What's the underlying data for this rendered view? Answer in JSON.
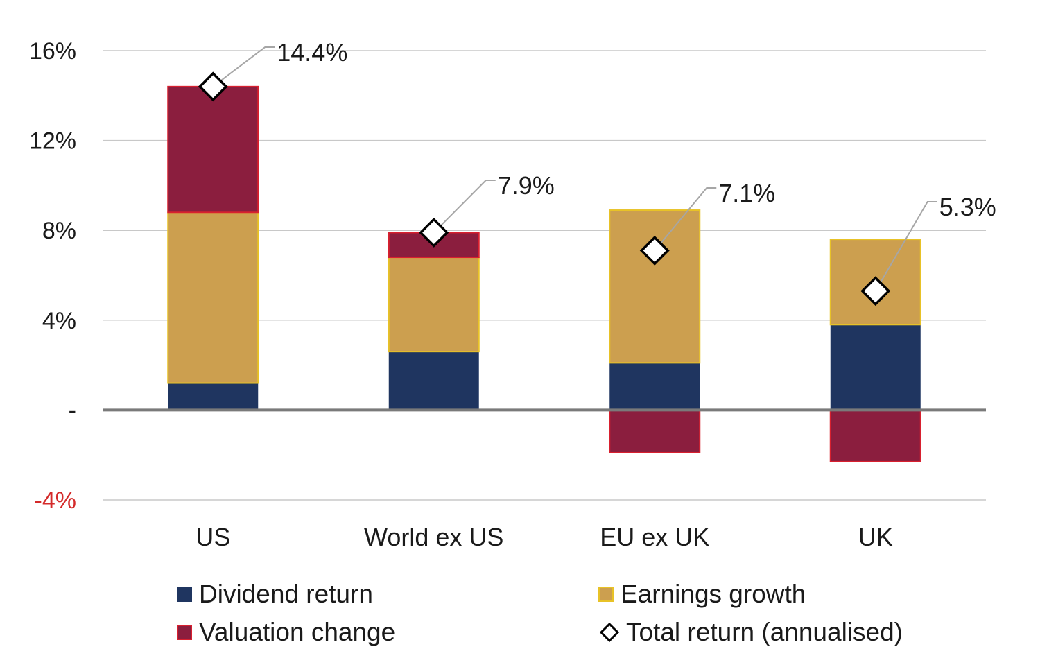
{
  "chart_data": {
    "type": "bar",
    "stacked": true,
    "categories": [
      "US",
      "World ex US",
      "EU ex UK",
      "UK"
    ],
    "series": [
      {
        "name": "Dividend return",
        "color": "#1f3560",
        "values": [
          1.2,
          2.6,
          2.1,
          3.8
        ]
      },
      {
        "name": "Earnings growth",
        "color": "#cc9f4f",
        "values": [
          7.6,
          4.2,
          6.8,
          3.8
        ]
      },
      {
        "name": "Valuation change",
        "color": "#8b1e3e",
        "values": [
          5.6,
          1.1,
          -1.9,
          -2.3
        ]
      }
    ],
    "total_return": {
      "name": "Total return (annualised)",
      "values": [
        14.4,
        7.9,
        7.1,
        5.3
      ],
      "labels": [
        "14.4%",
        "7.9%",
        "7.1%",
        "5.3%"
      ]
    },
    "ylim": [
      -4,
      16
    ],
    "yticks": [
      -4,
      0,
      4,
      8,
      12,
      16
    ],
    "ytick_labels": [
      "-4%",
      "-",
      "4%",
      "8%",
      "12%",
      "16%"
    ],
    "grid": true,
    "legend_position": "bottom"
  },
  "legend": {
    "dividend": "Dividend return",
    "earnings": "Earnings growth",
    "valuation": "Valuation change",
    "total": "Total return (annualised)"
  },
  "colors": {
    "dividend": "#1f3560",
    "earnings": "#cc9f4f",
    "earnings_border": "#e8c227",
    "valuation": "#8b1e3e",
    "valuation_border": "#d8202f",
    "negative_tick": "#d42a2a",
    "grid": "#c8c8c8",
    "zero_line": "#7a7a7a",
    "leader": "#a6a6a6"
  }
}
